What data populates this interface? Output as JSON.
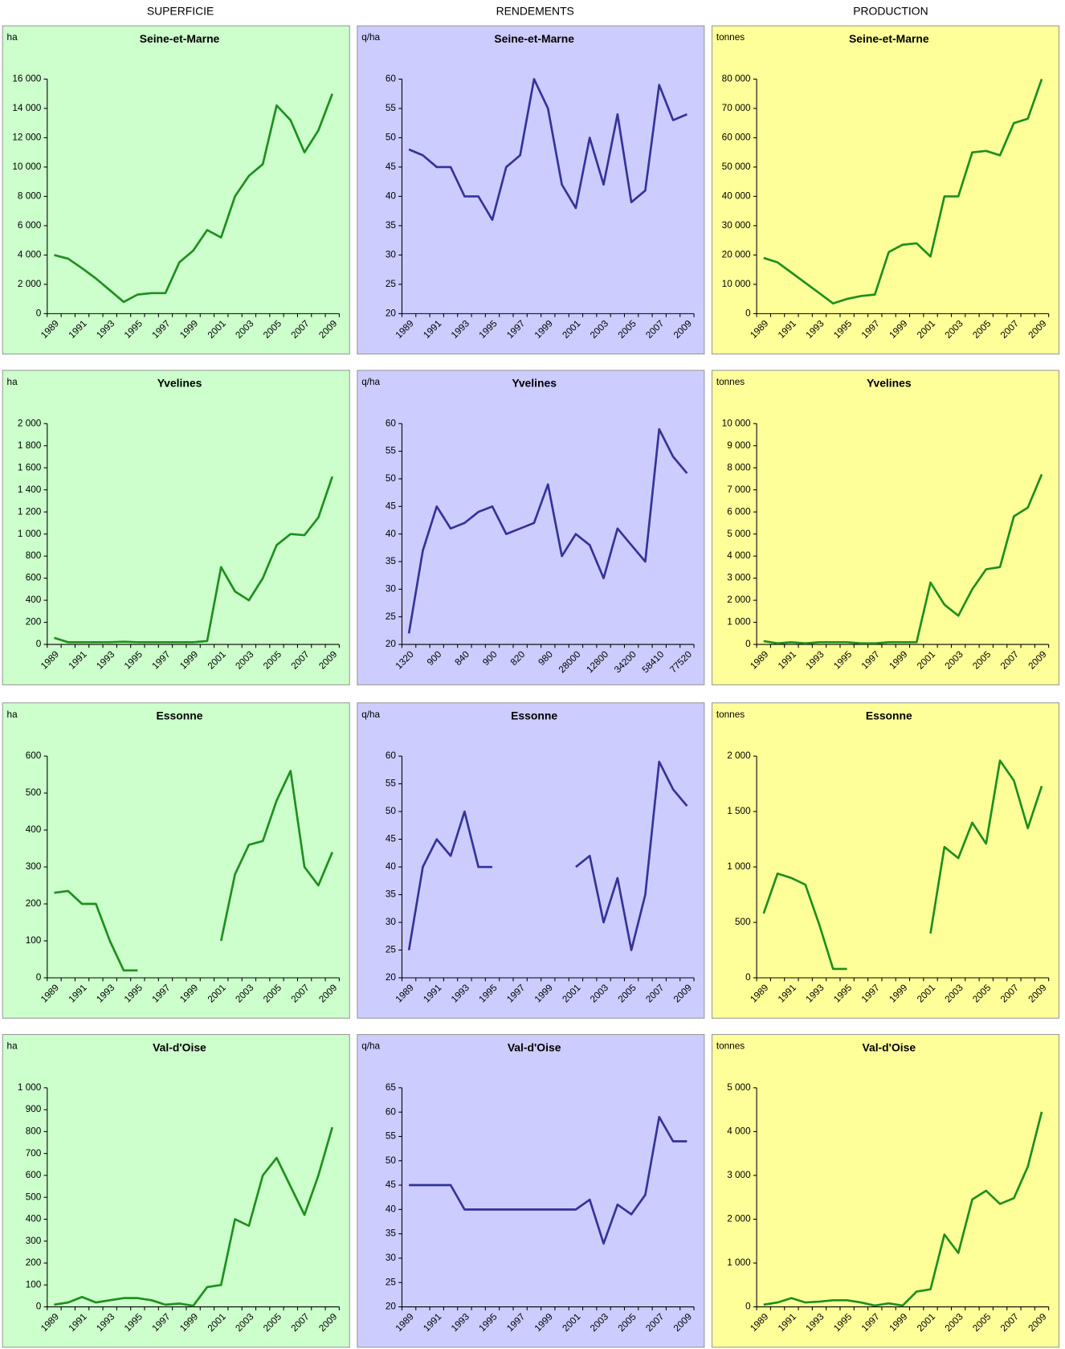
{
  "column_titles": [
    "SUPERFICIE",
    "RENDEMENTS",
    "PRODUCTION"
  ],
  "chart_data": [
    {
      "type": "line",
      "title": "Seine-et-Marne",
      "ylabel": "ha",
      "background": "#ccffcc",
      "color": "#1e8f1e",
      "title_color": "#1e8f1e",
      "categories": [
        "1989",
        null,
        "1991",
        null,
        "1993",
        null,
        "1995",
        null,
        "1997",
        null,
        "1999",
        null,
        "2001",
        null,
        "2003",
        null,
        "2005",
        null,
        "2007",
        null,
        "2009"
      ],
      "values": [
        4000,
        3750,
        3100,
        2400,
        1600,
        800,
        1300,
        1400,
        1400,
        3500,
        4300,
        5700,
        5200,
        8000,
        9400,
        10200,
        14200,
        13200,
        11000,
        12500,
        15000
      ],
      "ylim": [
        0,
        16000
      ],
      "yticks": [
        0,
        {
          "value": 2000,
          "label": "2 000"
        },
        {
          "value": 4000,
          "label": "4 000"
        },
        {
          "value": 6000,
          "label": "6 000"
        },
        {
          "value": 8000,
          "label": "8 000"
        },
        {
          "value": 10000,
          "label": "10 000"
        },
        {
          "value": 12000,
          "label": "12 000"
        },
        {
          "value": 14000,
          "label": "14 000"
        },
        {
          "value": 16000,
          "label": "16 000"
        }
      ]
    },
    {
      "type": "line",
      "title": "Seine-et-Marne",
      "ylabel": "q/ha",
      "background": "#ccccff",
      "color": "#333399",
      "title_color": "#333399",
      "categories": [
        "1989",
        null,
        "1991",
        null,
        "1993",
        null,
        "1995",
        null,
        "1997",
        null,
        "1999",
        null,
        "2001",
        null,
        "2003",
        null,
        "2005",
        null,
        "2007",
        null,
        "2009"
      ],
      "values": [
        48,
        47,
        45,
        45,
        40,
        40,
        36,
        45,
        47,
        60,
        55,
        42,
        38,
        50,
        42,
        54,
        39,
        41,
        59,
        53,
        54
      ],
      "ylim": [
        20,
        60
      ],
      "yticks": [
        20,
        25,
        30,
        35,
        40,
        45,
        50,
        55,
        60
      ]
    },
    {
      "type": "line",
      "title": "Seine-et-Marne",
      "ylabel": "tonnes",
      "background": "#ffff99",
      "color": "#1e8f1e",
      "title_color": "#1e8f1e",
      "categories": [
        "1989",
        null,
        "1991",
        null,
        "1993",
        null,
        "1995",
        null,
        "1997",
        null,
        "1999",
        null,
        "2001",
        null,
        "2003",
        null,
        "2005",
        null,
        "2007",
        null,
        "2009"
      ],
      "values": [
        19000,
        17500,
        14000,
        10500,
        7000,
        3500,
        5000,
        6000,
        6500,
        21000,
        23500,
        24000,
        19500,
        40000,
        40000,
        55000,
        55500,
        54000,
        65000,
        66500,
        80000
      ],
      "ylim": [
        0,
        80000
      ],
      "yticks": [
        0,
        {
          "value": 10000,
          "label": "10 000"
        },
        {
          "value": 20000,
          "label": "20 000"
        },
        {
          "value": 30000,
          "label": "30 000"
        },
        {
          "value": 40000,
          "label": "40 000"
        },
        {
          "value": 50000,
          "label": "50 000"
        },
        {
          "value": 60000,
          "label": "60 000"
        },
        {
          "value": 70000,
          "label": "70 000"
        },
        {
          "value": 80000,
          "label": "80 000"
        }
      ]
    },
    {
      "type": "line",
      "title": "Yvelines",
      "ylabel": "ha",
      "background": "#ccffcc",
      "color": "#1e8f1e",
      "title_color": "#1e8f1e",
      "categories": [
        "1989",
        null,
        "1991",
        null,
        "1993",
        null,
        "1995",
        null,
        "1997",
        null,
        "1999",
        null,
        "2001",
        null,
        "2003",
        null,
        "2005",
        null,
        "2007",
        null,
        "2009"
      ],
      "values": [
        60,
        20,
        20,
        20,
        20,
        25,
        20,
        20,
        20,
        20,
        20,
        30,
        700,
        480,
        400,
        600,
        900,
        1000,
        990,
        1150,
        1520
      ],
      "ylim": [
        0,
        2000
      ],
      "yticks": [
        0,
        200,
        400,
        600,
        800,
        {
          "value": 1000,
          "label": "1 000"
        },
        {
          "value": 1200,
          "label": "1 200"
        },
        {
          "value": 1400,
          "label": "1 400"
        },
        {
          "value": 1600,
          "label": "1 600"
        },
        {
          "value": 1800,
          "label": "1 800"
        },
        {
          "value": 2000,
          "label": "2 000"
        }
      ]
    },
    {
      "type": "line",
      "title": "Yvelines",
      "ylabel": "q/ha",
      "background": "#ccccff",
      "color": "#333399",
      "title_color": "#333399",
      "categories": [
        "1320",
        null,
        "900",
        null,
        "840",
        null,
        "900",
        null,
        "820",
        null,
        "980",
        null,
        "28000",
        null,
        "12800",
        null,
        "34200",
        null,
        "58410",
        null,
        "77520"
      ],
      "values": [
        22,
        37,
        45,
        41,
        42,
        44,
        45,
        40,
        41,
        42,
        49,
        36,
        40,
        38,
        32,
        41,
        38,
        35,
        59,
        54,
        51
      ],
      "ylim": [
        20,
        60
      ],
      "yticks": [
        20,
        25,
        30,
        35,
        40,
        45,
        50,
        55,
        60
      ]
    },
    {
      "type": "line",
      "title": "Yvelines",
      "ylabel": "tonnes",
      "background": "#ffff99",
      "color": "#1e8f1e",
      "title_color": "#1e8f1e",
      "categories": [
        "1989",
        null,
        "1991",
        null,
        "1993",
        null,
        "1995",
        null,
        "1997",
        null,
        "1999",
        null,
        "2001",
        null,
        "2003",
        null,
        "2005",
        null,
        "2007",
        null,
        "2009"
      ],
      "values": [
        150,
        50,
        100,
        50,
        100,
        100,
        100,
        50,
        50,
        100,
        100,
        100,
        2800,
        1800,
        1300,
        2500,
        3400,
        3500,
        5800,
        6200,
        7700
      ],
      "ylim": [
        0,
        10000
      ],
      "yticks": [
        0,
        {
          "value": 1000,
          "label": "1 000"
        },
        {
          "value": 2000,
          "label": "2 000"
        },
        {
          "value": 3000,
          "label": "3 000"
        },
        {
          "value": 4000,
          "label": "4 000"
        },
        {
          "value": 5000,
          "label": "5 000"
        },
        {
          "value": 6000,
          "label": "6 000"
        },
        {
          "value": 7000,
          "label": "7 000"
        },
        {
          "value": 8000,
          "label": "8 000"
        },
        {
          "value": 9000,
          "label": "9 000"
        },
        {
          "value": 10000,
          "label": "10 000"
        }
      ]
    },
    {
      "type": "line",
      "title": "Essonne",
      "ylabel": "ha",
      "background": "#ccffcc",
      "color": "#1e8f1e",
      "title_color": "#1e8f1e",
      "categories": [
        "1989",
        null,
        "1991",
        null,
        "1993",
        null,
        "1995",
        null,
        "1997",
        null,
        "1999",
        null,
        "2001",
        null,
        "2003",
        null,
        "2005",
        null,
        "2007",
        null,
        "2009"
      ],
      "values": [
        230,
        235,
        200,
        200,
        100,
        20,
        20,
        null,
        null,
        null,
        null,
        null,
        100,
        280,
        360,
        370,
        480,
        560,
        300,
        250,
        340
      ],
      "ylim": [
        0,
        600
      ],
      "yticks": [
        0,
        100,
        200,
        300,
        400,
        500,
        600
      ]
    },
    {
      "type": "line",
      "title": "Essonne",
      "ylabel": "q/ha",
      "background": "#ccccff",
      "color": "#333399",
      "title_color": "#333399",
      "categories": [
        "1989",
        null,
        "1991",
        null,
        "1993",
        null,
        "1995",
        null,
        "1997",
        null,
        "1999",
        null,
        "2001",
        null,
        "2003",
        null,
        "2005",
        null,
        "2007",
        null,
        "2009"
      ],
      "values": [
        25,
        40,
        45,
        42,
        50,
        40,
        40,
        null,
        null,
        null,
        null,
        null,
        40,
        42,
        30,
        38,
        25,
        35,
        59,
        54,
        51
      ],
      "ylim": [
        20,
        60
      ],
      "yticks": [
        20,
        25,
        30,
        35,
        40,
        45,
        50,
        55,
        60
      ]
    },
    {
      "type": "line",
      "title": "Essonne",
      "ylabel": "tonnes",
      "background": "#ffff99",
      "color": "#1e8f1e",
      "title_color": "#1e8f1e",
      "categories": [
        "1989",
        null,
        "1991",
        null,
        "1993",
        null,
        "1995",
        null,
        "1997",
        null,
        "1999",
        null,
        "2001",
        null,
        "2003",
        null,
        "2005",
        null,
        "2007",
        null,
        "2009"
      ],
      "values": [
        580,
        940,
        900,
        840,
        480,
        80,
        80,
        null,
        null,
        null,
        null,
        null,
        400,
        1180,
        1080,
        1400,
        1210,
        1960,
        1780,
        1350,
        1730
      ],
      "ylim": [
        0,
        2000
      ],
      "yticks": [
        0,
        500,
        {
          "value": 1000,
          "label": "1 000"
        },
        {
          "value": 1500,
          "label": "1 500"
        },
        {
          "value": 2000,
          "label": "2 000"
        }
      ]
    },
    {
      "type": "line",
      "title": "Val-d'Oise",
      "ylabel": "ha",
      "background": "#ccffcc",
      "color": "#1e8f1e",
      "title_color": "#1e8f1e",
      "categories": [
        "1989",
        null,
        "1991",
        null,
        "1993",
        null,
        "1995",
        null,
        "1997",
        null,
        "1999",
        null,
        "2001",
        null,
        "2003",
        null,
        "2005",
        null,
        "2007",
        null,
        "2009"
      ],
      "values": [
        10,
        20,
        45,
        20,
        30,
        40,
        40,
        30,
        10,
        15,
        5,
        90,
        100,
        400,
        370,
        600,
        680,
        550,
        420,
        600,
        820
      ],
      "ylim": [
        0,
        1000
      ],
      "yticks": [
        0,
        100,
        200,
        300,
        400,
        500,
        600,
        700,
        800,
        900,
        {
          "value": 1000,
          "label": "1 000"
        }
      ]
    },
    {
      "type": "line",
      "title": "Val-d'Oise",
      "ylabel": "q/ha",
      "background": "#ccccff",
      "color": "#333399",
      "title_color": "#333399",
      "categories": [
        "1989",
        null,
        "1991",
        null,
        "1993",
        null,
        "1995",
        null,
        "1997",
        null,
        "1999",
        null,
        "2001",
        null,
        "2003",
        null,
        "2005",
        null,
        "2007",
        null,
        "2009"
      ],
      "values": [
        45,
        45,
        45,
        45,
        40,
        40,
        40,
        40,
        40,
        40,
        40,
        40,
        40,
        42,
        33,
        41,
        39,
        43,
        59,
        54,
        54
      ],
      "ylim": [
        20,
        65
      ],
      "yticks": [
        20,
        25,
        30,
        35,
        40,
        45,
        50,
        55,
        60,
        65
      ]
    },
    {
      "type": "line",
      "title": "Val-d'Oise",
      "ylabel": "tonnes",
      "background": "#ffff99",
      "color": "#1e8f1e",
      "title_color": "#1e8f1e",
      "categories": [
        "1989",
        null,
        "1991",
        null,
        "1993",
        null,
        "1995",
        null,
        "1997",
        null,
        "1999",
        null,
        "2001",
        null,
        "2003",
        null,
        "2005",
        null,
        "2007",
        null,
        "2009"
      ],
      "values": [
        50,
        100,
        200,
        100,
        120,
        150,
        150,
        100,
        30,
        80,
        30,
        350,
        400,
        1650,
        1230,
        2450,
        2650,
        2350,
        2480,
        3200,
        4450
      ],
      "ylim": [
        0,
        5000
      ],
      "yticks": [
        0,
        {
          "value": 1000,
          "label": "1 000"
        },
        {
          "value": 2000,
          "label": "2 000"
        },
        {
          "value": 3000,
          "label": "3 000"
        },
        {
          "value": 4000,
          "label": "4 000"
        },
        {
          "value": 5000,
          "label": "5 000"
        }
      ]
    }
  ]
}
